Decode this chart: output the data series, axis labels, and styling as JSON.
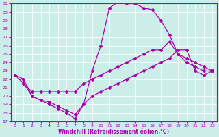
{
  "xlabel": "Windchill (Refroidissement éolien,°C)",
  "ylabel": "",
  "xlim": [
    -0.5,
    23.5
  ],
  "ylim": [
    17,
    31
  ],
  "yticks": [
    17,
    18,
    19,
    20,
    21,
    22,
    23,
    24,
    25,
    26,
    27,
    28,
    29,
    30,
    31
  ],
  "xticks": [
    0,
    1,
    2,
    3,
    4,
    5,
    6,
    7,
    8,
    9,
    10,
    11,
    12,
    13,
    14,
    15,
    16,
    17,
    18,
    19,
    20,
    21,
    22,
    23
  ],
  "background_color": "#cceee8",
  "grid_color": "#aaddcc",
  "line_color": "#aa00aa",
  "line1_x": [
    0,
    1,
    2,
    3,
    4,
    5,
    6,
    7,
    8,
    9,
    10,
    11,
    12,
    13,
    14,
    15,
    16,
    17,
    18,
    19,
    20,
    21,
    22,
    23
  ],
  "line1_y": [
    22.5,
    22.0,
    20.0,
    19.5,
    19.0,
    18.5,
    18.0,
    17.3,
    19.0,
    23.0,
    26.0,
    30.5,
    31.2,
    31.0,
    31.0,
    30.5,
    30.3,
    29.0,
    27.3,
    25.0,
    24.0,
    23.5,
    23.0,
    23.0
  ],
  "line2_x": [
    0,
    1,
    2,
    3,
    4,
    5,
    6,
    7,
    8,
    9,
    10,
    11,
    12,
    13,
    14,
    15,
    16,
    17,
    18,
    19,
    20,
    21,
    22,
    23
  ],
  "line2_y": [
    22.5,
    21.5,
    20.5,
    20.5,
    20.5,
    20.5,
    20.5,
    20.5,
    21.5,
    22.0,
    22.5,
    23.0,
    23.5,
    24.0,
    24.5,
    25.0,
    25.5,
    25.5,
    26.5,
    25.0,
    24.5,
    24.0,
    23.5,
    23.0
  ],
  "line3_x": [
    0,
    1,
    2,
    3,
    4,
    5,
    6,
    7,
    8,
    9,
    10,
    11,
    12,
    13,
    14,
    15,
    16,
    17,
    18,
    19,
    20,
    21,
    22,
    23
  ],
  "line3_y": [
    22.5,
    21.5,
    20.0,
    19.5,
    19.3,
    18.8,
    18.3,
    17.8,
    19.0,
    20.0,
    20.5,
    21.0,
    21.5,
    22.0,
    22.5,
    23.0,
    23.5,
    24.0,
    24.5,
    25.5,
    25.5,
    23.0,
    22.5,
    23.0
  ]
}
